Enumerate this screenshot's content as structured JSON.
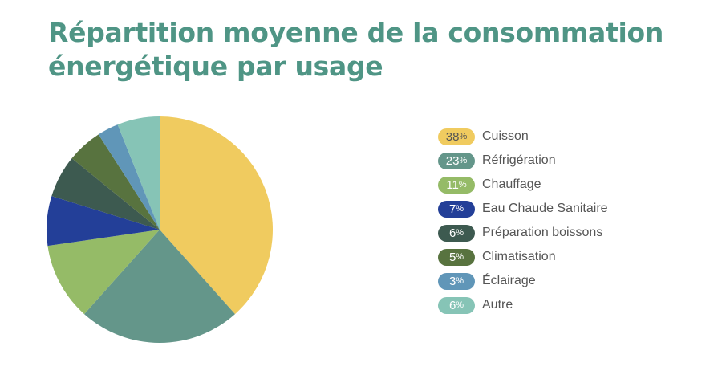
{
  "chart_data": {
    "type": "pie",
    "title": "Répartition moyenne de la consommation énergétique par usage",
    "legend_position": "right",
    "unit": "%",
    "slices": [
      {
        "label": "Cuisson",
        "value": 38,
        "color": "#f0cb5f",
        "text_color": "#555555"
      },
      {
        "label": "Réfrigération",
        "value": 23,
        "color": "#64968a",
        "text_color": "#ffffff"
      },
      {
        "label": "Chauffage",
        "value": 11,
        "color": "#95bb67",
        "text_color": "#ffffff"
      },
      {
        "label": "Eau Chaude Sanitaire",
        "value": 7,
        "color": "#233f98",
        "text_color": "#ffffff"
      },
      {
        "label": "Préparation boissons",
        "value": 6,
        "color": "#3d5a50",
        "text_color": "#ffffff"
      },
      {
        "label": "Climatisation",
        "value": 5,
        "color": "#58733f",
        "text_color": "#ffffff"
      },
      {
        "label": "Éclairage",
        "value": 3,
        "color": "#6096b8",
        "text_color": "#ffffff"
      },
      {
        "label": "Autre",
        "value": 6,
        "color": "#86c4b6",
        "text_color": "#ffffff"
      }
    ]
  }
}
